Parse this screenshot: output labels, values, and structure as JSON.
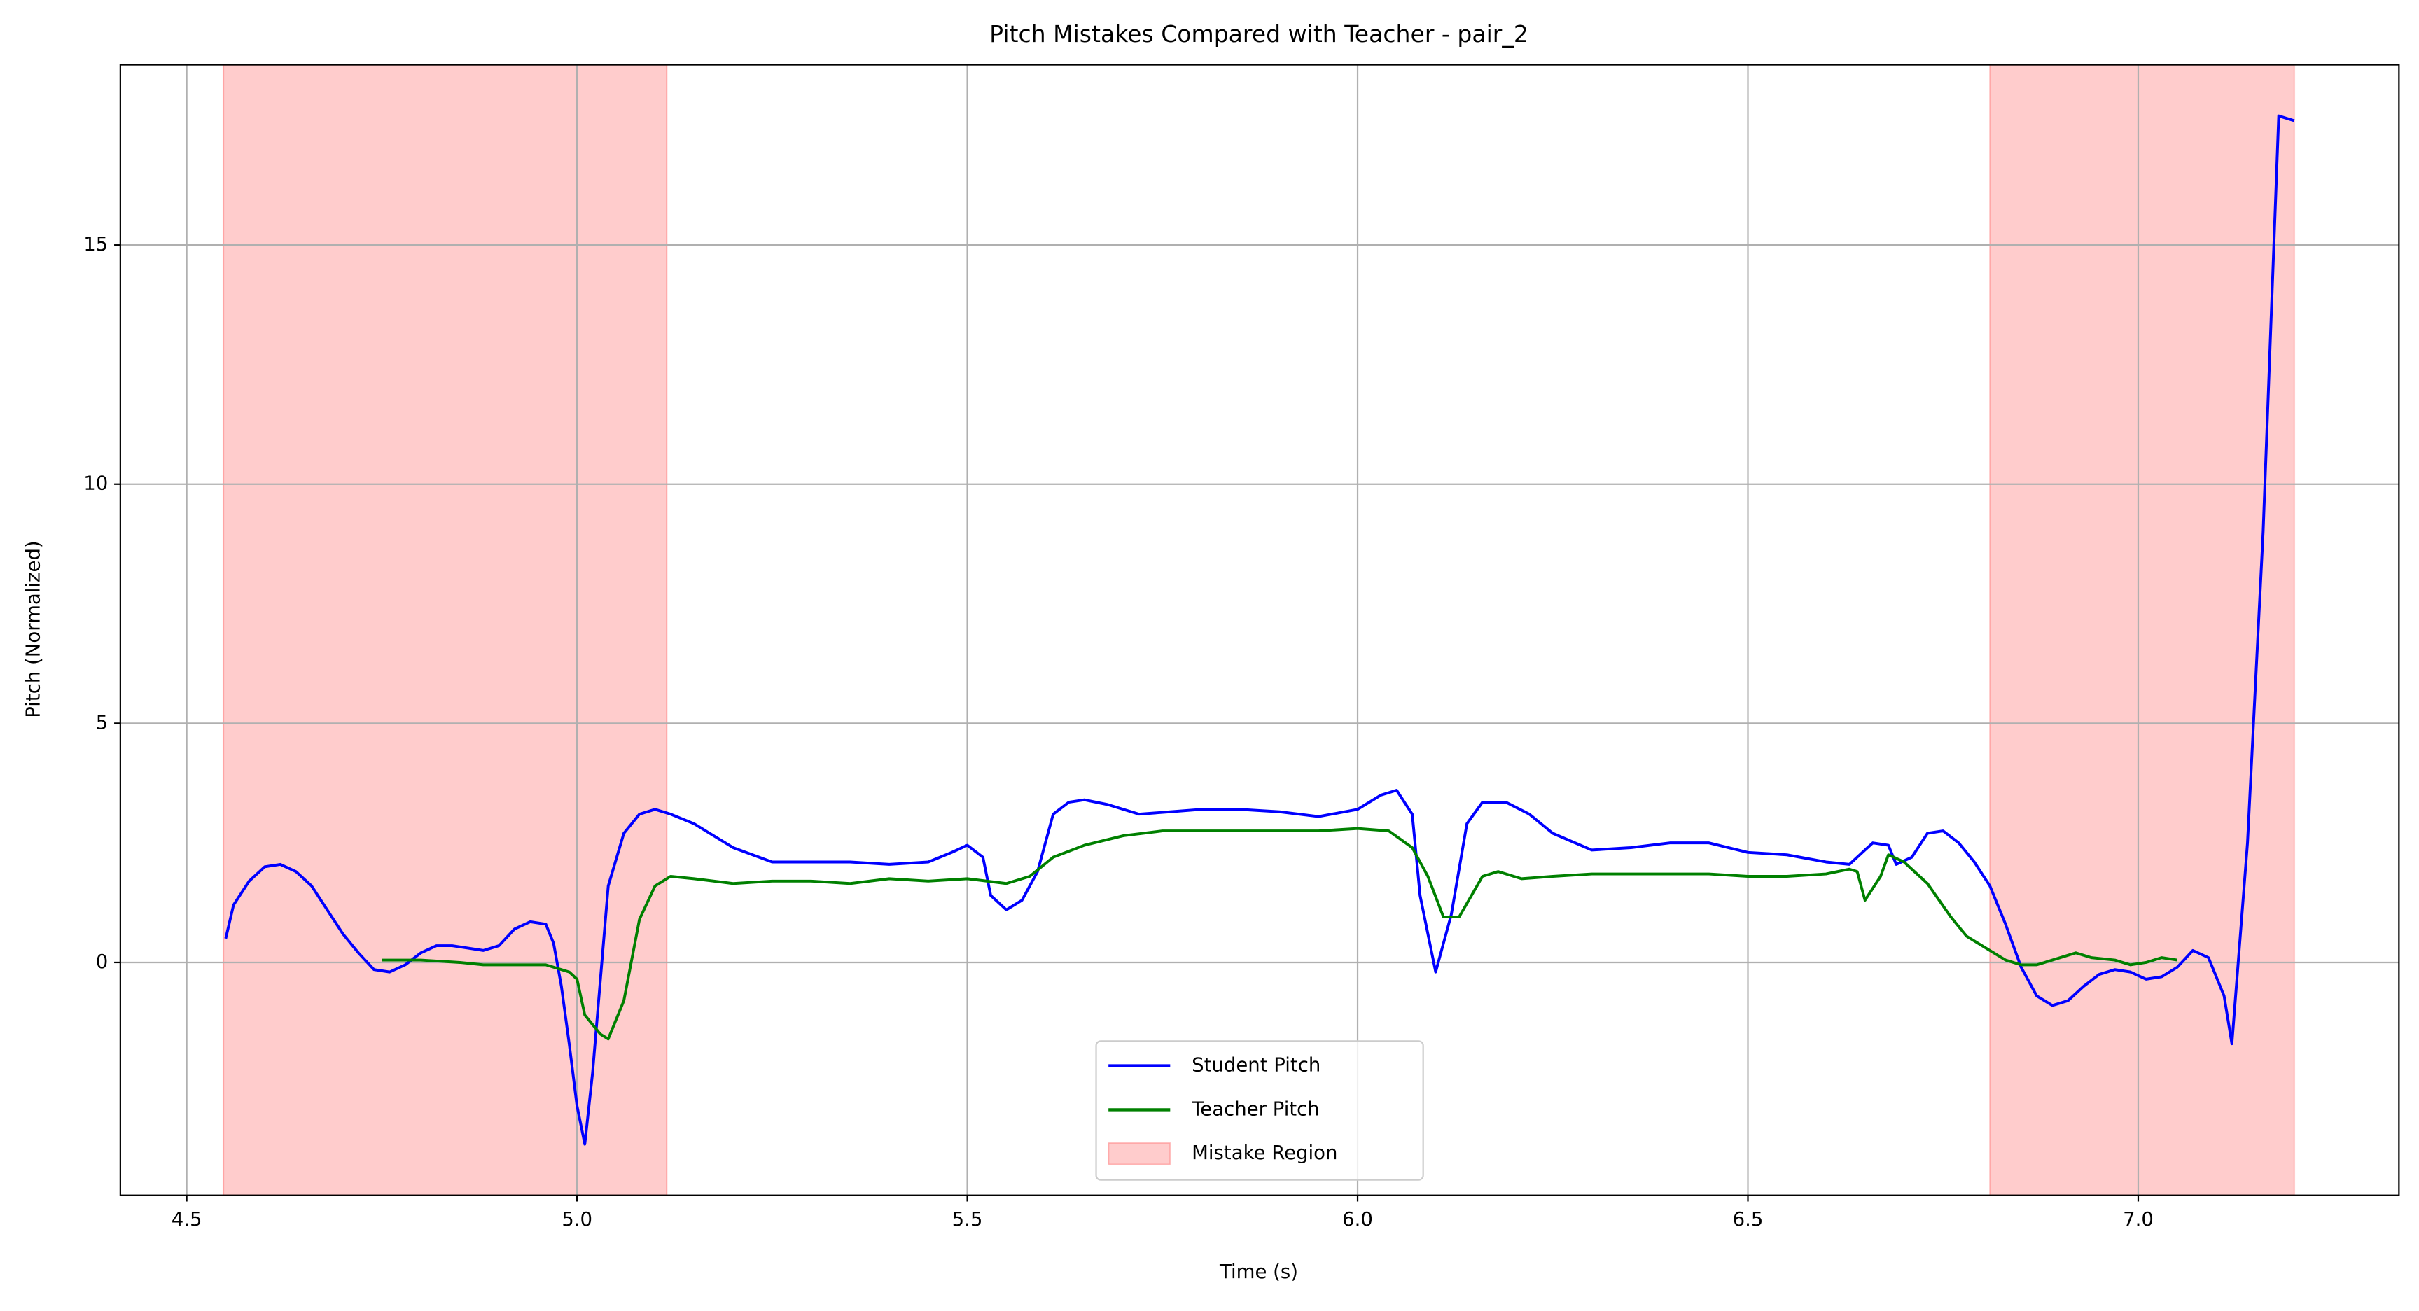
{
  "chart_data": {
    "type": "line",
    "title": "Pitch Mistakes Compared with Teacher - pair_2",
    "x_label": "Time (s)",
    "y_label": "Pitch (Normalized)",
    "xlim": [
      4.415,
      7.334
    ],
    "ylim": [
      -4.87,
      18.77
    ],
    "xticks": [
      4.5,
      {
        "value": 5,
        "label": "5.0"
      },
      5.5,
      {
        "value": 6,
        "label": "6.0"
      },
      6.5,
      {
        "value": 7,
        "label": "7.0"
      }
    ],
    "yticks": [
      0,
      5,
      10,
      15
    ],
    "grid": true,
    "legend": "lower center",
    "shaded_regions": {
      "name": "Mistake Region",
      "color": "#ff0000",
      "ranges": [
        [
          4.547,
          5.115
        ],
        [
          6.81,
          7.2
        ]
      ]
    },
    "series": [
      {
        "name": "Student Pitch",
        "color": "#0000ff",
        "x": [
          4.55,
          4.56,
          4.58,
          4.6,
          4.62,
          4.64,
          4.66,
          4.68,
          4.7,
          4.72,
          4.74,
          4.76,
          4.78,
          4.8,
          4.82,
          4.84,
          4.86,
          4.88,
          4.9,
          4.92,
          4.94,
          4.96,
          4.97,
          4.98,
          4.99,
          5.0,
          5.01,
          5.02,
          5.04,
          5.06,
          5.08,
          5.1,
          5.12,
          5.15,
          5.2,
          5.25,
          5.3,
          5.35,
          5.4,
          5.45,
          5.48,
          5.5,
          5.52,
          5.53,
          5.55,
          5.57,
          5.59,
          5.61,
          5.63,
          5.65,
          5.68,
          5.72,
          5.76,
          5.8,
          5.85,
          5.9,
          5.95,
          6.0,
          6.03,
          6.05,
          6.07,
          6.08,
          6.1,
          6.12,
          6.14,
          6.16,
          6.19,
          6.22,
          6.25,
          6.3,
          6.35,
          6.4,
          6.45,
          6.5,
          6.55,
          6.6,
          6.63,
          6.66,
          6.68,
          6.69,
          6.71,
          6.73,
          6.75,
          6.77,
          6.79,
          6.81,
          6.83,
          6.85,
          6.87,
          6.89,
          6.91,
          6.93,
          6.95,
          6.97,
          6.99,
          7.01,
          7.03,
          7.05,
          7.07,
          7.09,
          7.11,
          7.12,
          7.14,
          7.16,
          7.18,
          7.2
        ],
        "values": [
          0.5,
          1.2,
          1.7,
          2.0,
          2.05,
          1.9,
          1.6,
          1.1,
          0.6,
          0.2,
          -0.15,
          -0.2,
          -0.05,
          0.2,
          0.35,
          0.35,
          0.3,
          0.25,
          0.35,
          0.7,
          0.85,
          0.8,
          0.4,
          -0.5,
          -1.7,
          -3.0,
          -3.8,
          -2.3,
          1.6,
          2.7,
          3.1,
          3.2,
          3.1,
          2.9,
          2.4,
          2.1,
          2.1,
          2.1,
          2.05,
          2.1,
          2.3,
          2.45,
          2.2,
          1.4,
          1.1,
          1.3,
          1.9,
          3.1,
          3.35,
          3.4,
          3.3,
          3.1,
          3.15,
          3.2,
          3.2,
          3.15,
          3.05,
          3.2,
          3.5,
          3.6,
          3.1,
          1.4,
          -0.2,
          1.0,
          2.9,
          3.35,
          3.35,
          3.1,
          2.7,
          2.35,
          2.4,
          2.5,
          2.5,
          2.3,
          2.25,
          2.1,
          2.05,
          2.5,
          2.45,
          2.05,
          2.2,
          2.7,
          2.75,
          2.5,
          2.1,
          1.6,
          0.8,
          -0.1,
          -0.7,
          -0.9,
          -0.8,
          -0.5,
          -0.25,
          -0.15,
          -0.2,
          -0.35,
          -0.3,
          -0.1,
          0.25,
          0.1,
          -0.7,
          -1.7,
          2.5,
          9.0,
          17.7,
          17.6
        ]
      },
      {
        "name": "Teacher Pitch",
        "color": "#008000",
        "x": [
          4.75,
          4.8,
          4.85,
          4.88,
          4.92,
          4.96,
          4.99,
          5.0,
          5.01,
          5.03,
          5.04,
          5.06,
          5.08,
          5.1,
          5.12,
          5.15,
          5.2,
          5.25,
          5.3,
          5.35,
          5.4,
          5.45,
          5.5,
          5.55,
          5.58,
          5.61,
          5.65,
          5.7,
          5.75,
          5.8,
          5.85,
          5.9,
          5.95,
          6.0,
          6.04,
          6.07,
          6.09,
          6.11,
          6.13,
          6.16,
          6.18,
          6.21,
          6.25,
          6.3,
          6.35,
          6.4,
          6.45,
          6.5,
          6.55,
          6.6,
          6.63,
          6.64,
          6.65,
          6.67,
          6.68,
          6.7,
          6.73,
          6.76,
          6.78,
          6.81,
          6.83,
          6.85,
          6.87,
          6.89,
          6.92,
          6.94,
          6.97,
          6.99,
          7.01,
          7.03,
          7.05
        ],
        "values": [
          0.05,
          0.05,
          0.0,
          -0.05,
          -0.05,
          -0.05,
          -0.2,
          -0.35,
          -1.1,
          -1.5,
          -1.6,
          -0.8,
          0.9,
          1.6,
          1.8,
          1.75,
          1.65,
          1.7,
          1.7,
          1.65,
          1.75,
          1.7,
          1.75,
          1.65,
          1.8,
          2.2,
          2.45,
          2.65,
          2.75,
          2.75,
          2.75,
          2.75,
          2.75,
          2.8,
          2.75,
          2.4,
          1.8,
          0.95,
          0.95,
          1.8,
          1.9,
          1.75,
          1.8,
          1.85,
          1.85,
          1.85,
          1.85,
          1.8,
          1.8,
          1.85,
          1.95,
          1.9,
          1.3,
          1.8,
          2.25,
          2.1,
          1.65,
          0.95,
          0.55,
          0.25,
          0.05,
          -0.05,
          -0.05,
          0.05,
          0.2,
          0.1,
          0.05,
          -0.05,
          0.0,
          0.1,
          0.05
        ]
      }
    ]
  }
}
